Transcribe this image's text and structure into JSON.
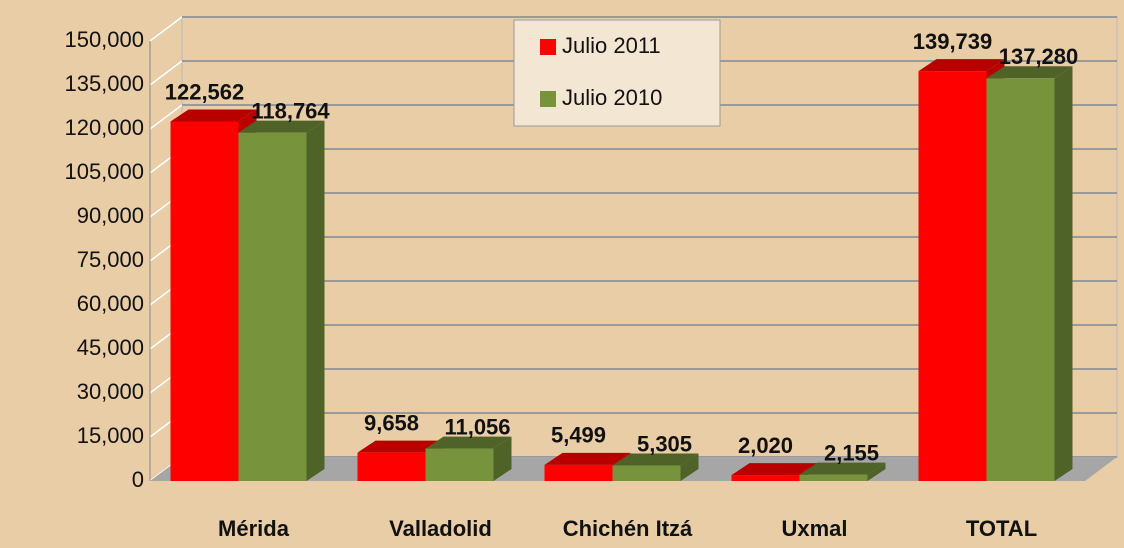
{
  "chart_data": {
    "type": "bar3d",
    "categories": [
      "Mérida",
      "Valladolid",
      "Chichén Itzá",
      "Uxmal",
      "TOTAL"
    ],
    "series": [
      {
        "name": "Julio 2011",
        "color": "#ff0000",
        "side": "#b80000",
        "values": [
          122562,
          9658,
          5499,
          2020,
          139739
        ],
        "value_labels": [
          "122,562",
          "9,658",
          "5,499",
          "2,020",
          "139,739"
        ]
      },
      {
        "name": "Julio 2010",
        "color": "#77933c",
        "side": "#4f6228",
        "values": [
          118764,
          11056,
          5305,
          2155,
          137280
        ],
        "value_labels": [
          "118,764",
          "11,056",
          "5,305",
          "2,155",
          "137,280"
        ]
      }
    ],
    "ylim": [
      0,
      150000
    ],
    "yticks": [
      0,
      {
        "value": 15000,
        "label": "15,000"
      },
      {
        "value": 30000,
        "label": "30,000"
      },
      {
        "value": 45000,
        "label": "45,000"
      },
      {
        "value": 60000,
        "label": "60,000"
      },
      {
        "value": 75000,
        "label": "75,000"
      },
      {
        "value": 90000,
        "label": "90,000"
      },
      {
        "value": 105000,
        "label": "105,000"
      },
      {
        "value": 120000,
        "label": "120,000"
      },
      {
        "value": 135000,
        "label": "135,000"
      },
      {
        "value": 150000,
        "label": "150,000"
      }
    ],
    "grid": true,
    "legend": "top"
  }
}
